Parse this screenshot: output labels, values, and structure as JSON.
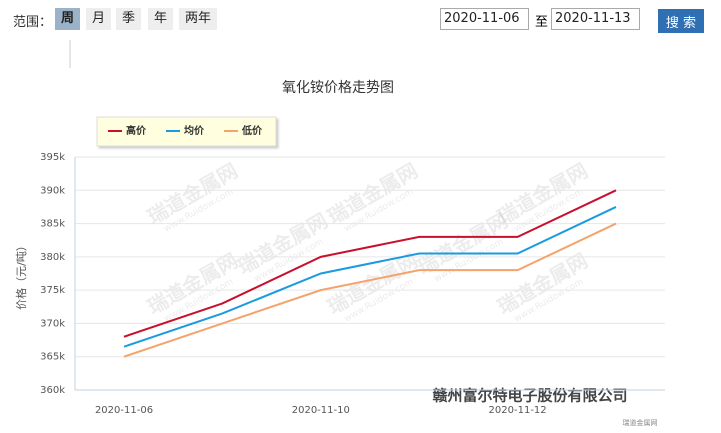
{
  "toolbar": {
    "range_label": "范围：",
    "ranges": [
      "周",
      "月",
      "季",
      "年",
      "两年"
    ],
    "start_date": "2020-11-06",
    "to": "至",
    "end_date": "2020-11-13",
    "search": "搜 索"
  },
  "chart_data": {
    "type": "line",
    "title": "氧化铵价格走势图",
    "y_label": "价格（元/吨）",
    "categories": [
      "2020-11-06",
      null,
      "2020-11-10",
      null,
      "2020-11-12",
      null
    ],
    "series": [
      {
        "name": "高价",
        "color": "#c8102e",
        "values": [
          368000,
          373000,
          380000,
          383000,
          383000,
          390000
        ]
      },
      {
        "name": "均价",
        "color": "#1a9be0",
        "values": [
          366500,
          371500,
          377500,
          380500,
          380500,
          387500
        ]
      },
      {
        "name": "低价",
        "color": "#f4a36c",
        "values": [
          365000,
          370000,
          375000,
          378000,
          378000,
          385000
        ]
      }
    ],
    "ylim": [
      360000,
      395000
    ],
    "yticks": [
      {
        "value": 360000,
        "label": "360k"
      },
      {
        "value": 365000,
        "label": "365k"
      },
      {
        "value": 370000,
        "label": "370k"
      },
      {
        "value": 375000,
        "label": "375k"
      },
      {
        "value": 380000,
        "label": "380k"
      },
      {
        "value": 385000,
        "label": "385k"
      },
      {
        "value": 390000,
        "label": "390k"
      },
      {
        "value": 395000,
        "label": "395k"
      }
    ],
    "grid": true,
    "legend": "top-left",
    "watermark": "瑞道金属网",
    "watermark_url": "www.Ruidow.com",
    "credit": "瑞道金属网",
    "source_mark": "赣州富尔特电子股份有限公司"
  }
}
